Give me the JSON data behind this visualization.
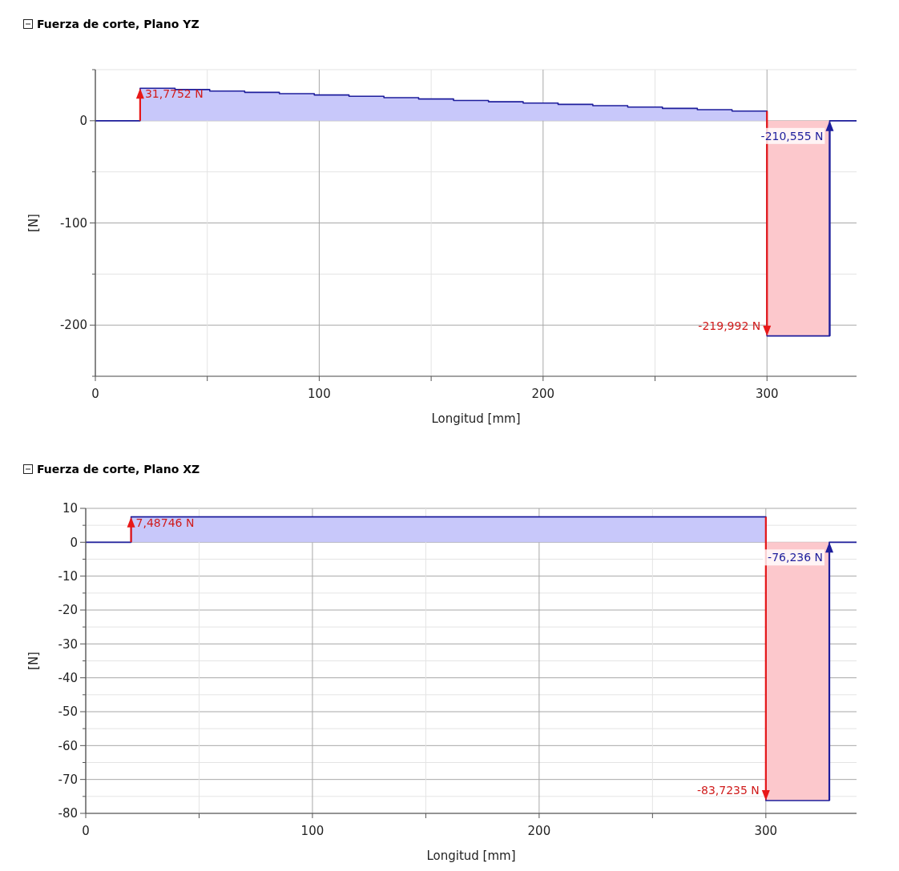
{
  "chart_data": [
    {
      "type": "step",
      "title": "Fuerza de corte, Plano YZ",
      "xlabel": "Longitud [mm]",
      "ylabel": "[N]",
      "xlim": [
        0,
        340
      ],
      "xticks": [
        0,
        {
          "value": 50,
          "label": null
        },
        100,
        {
          "value": 150,
          "label": null
        },
        200,
        {
          "value": 250,
          "label": null
        },
        300
      ],
      "ylim": [
        -250,
        50
      ],
      "yticks": [
        {
          "value": 50,
          "label": null
        },
        0,
        {
          "value": -50,
          "label": null
        },
        -100,
        {
          "value": -150,
          "label": null
        },
        -200,
        {
          "value": -250,
          "label": null
        }
      ],
      "grid": true,
      "series": [
        {
          "type": "area",
          "color": "#c8c8fa",
          "x": [
            20,
            35.6,
            51.1,
            66.7,
            82.2,
            97.8,
            113.3,
            128.9,
            144.4,
            160,
            175.6,
            191.1,
            206.7,
            222.2,
            237.8,
            253.3,
            268.9,
            284.4,
            300
          ],
          "values": [
            31.7752,
            30.5,
            29.1,
            27.8,
            26.5,
            25.2,
            23.9,
            22.6,
            21.3,
            19.9,
            18.6,
            17.3,
            16.0,
            14.7,
            13.4,
            12.1,
            10.8,
            9.437,
            9.437
          ]
        },
        {
          "type": "area",
          "color": "#fcc8cc",
          "x": [
            300,
            328
          ],
          "values": [
            -210.555,
            -210.555
          ]
        },
        {
          "color": "#1e1e9c",
          "x": [
            0,
            20,
            35.6,
            51.1,
            66.7,
            82.2,
            97.8,
            113.3,
            128.9,
            144.4,
            160,
            175.6,
            191.1,
            206.7,
            222.2,
            237.8,
            253.3,
            268.9,
            284.4,
            300,
            328,
            340
          ],
          "values": [
            0,
            31.7752,
            30.5,
            29.1,
            27.8,
            26.5,
            25.2,
            23.9,
            22.6,
            21.3,
            19.9,
            18.6,
            17.3,
            16.0,
            14.7,
            13.4,
            12.1,
            10.8,
            9.437,
            -210.555,
            0,
            0
          ]
        }
      ],
      "annotations": [
        {
          "text": "31,7752 N",
          "x": 20,
          "y": 31.7752
        },
        {
          "text": "-219,992 N",
          "x": 300,
          "y": -210.555
        },
        {
          "text": "-210,555 N",
          "x": 328,
          "y": 0
        }
      ]
    },
    {
      "type": "step",
      "title": "Fuerza de corte, Plano XZ",
      "xlabel": "Longitud [mm]",
      "ylabel": "[N]",
      "xlim": [
        0,
        340
      ],
      "xticks": [
        0,
        {
          "value": 50,
          "label": null
        },
        100,
        {
          "value": 150,
          "label": null
        },
        200,
        {
          "value": 250,
          "label": null
        },
        300
      ],
      "ylim": [
        -80,
        10
      ],
      "yticks": [
        10,
        {
          "value": 5,
          "label": null
        },
        0,
        {
          "value": -5,
          "label": null
        },
        -10,
        {
          "value": -15,
          "label": null
        },
        -20,
        {
          "value": -25,
          "label": null
        },
        -30,
        {
          "value": -35,
          "label": null
        },
        -40,
        {
          "value": -45,
          "label": null
        },
        -50,
        {
          "value": -55,
          "label": null
        },
        -60,
        {
          "value": -65,
          "label": null
        },
        -70,
        {
          "value": -75,
          "label": null
        },
        -80
      ],
      "grid": true,
      "series": [
        {
          "type": "area",
          "color": "#c8c8fa",
          "x": [
            20,
            300
          ],
          "values": [
            7.48746,
            7.48746
          ]
        },
        {
          "type": "area",
          "color": "#fcc8cc",
          "x": [
            300,
            328
          ],
          "values": [
            -76.236,
            -76.236
          ]
        },
        {
          "color": "#1e1e9c",
          "x": [
            0,
            20,
            300,
            328,
            340
          ],
          "values": [
            0,
            7.48746,
            -76.236,
            0,
            0
          ]
        }
      ],
      "annotations": [
        {
          "text": "7,48746 N",
          "x": 20,
          "y": 7.48746
        },
        {
          "text": "-83,7235 N",
          "x": 300,
          "y": -76.236
        },
        {
          "text": "-76,236 N",
          "x": 328,
          "y": 0
        }
      ]
    }
  ]
}
